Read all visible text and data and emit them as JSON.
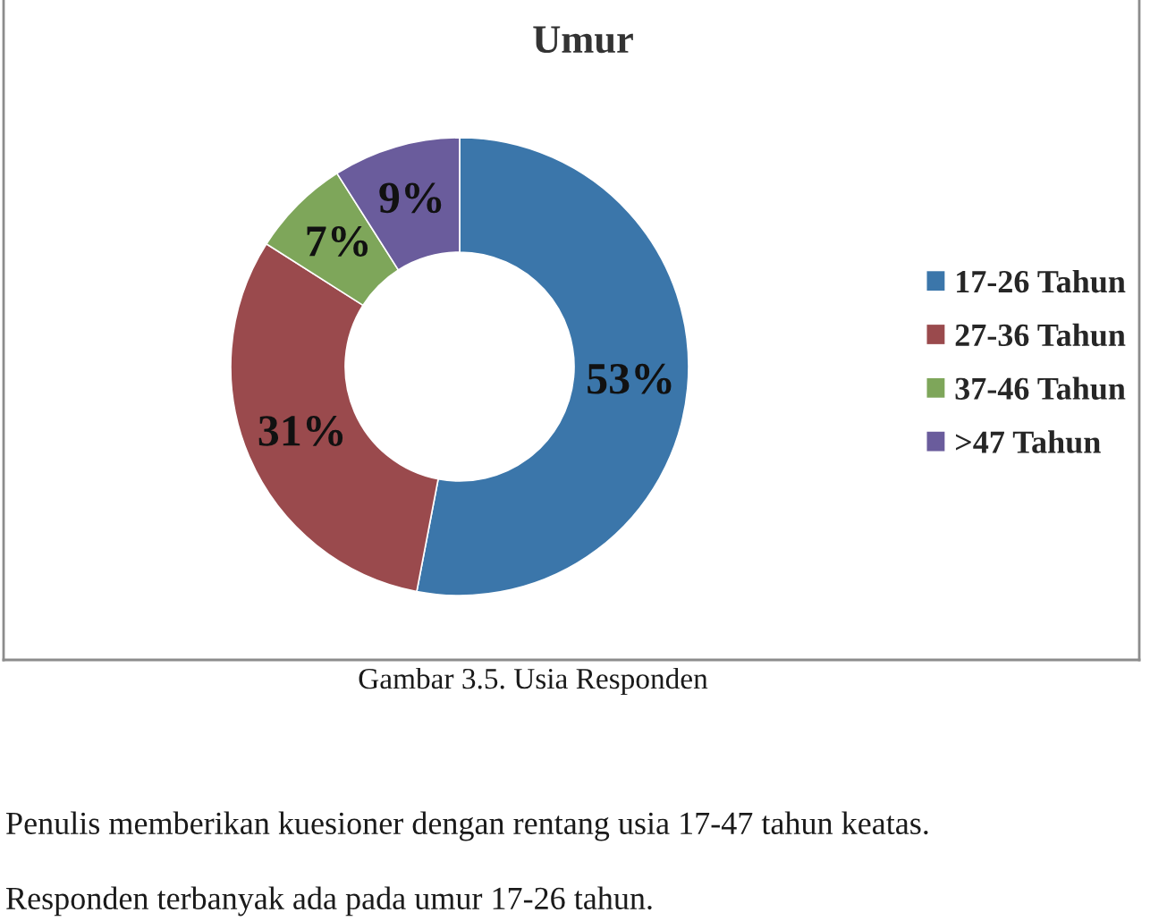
{
  "chart_data": {
    "type": "donut",
    "title": "Umur",
    "categories": [
      "17-26 Tahun",
      "27-36 Tahun",
      "37-46 Tahun",
      ">47 Tahun"
    ],
    "values": [
      53,
      31,
      7,
      9
    ],
    "colors": [
      "#3b76aa",
      "#9a4a4d",
      "#7ea65a",
      "#6a5c9c"
    ],
    "value_labels": [
      "53%",
      "31%",
      "7%",
      "9%"
    ],
    "legend": "right",
    "annotations": [
      "Gambar 3.5. Usia Responden",
      "Penulis memberikan kuesioner dengan rentang usia 17-47 tahun keatas.",
      "Responden terbanyak ada pada umur 17-26 tahun."
    ]
  }
}
